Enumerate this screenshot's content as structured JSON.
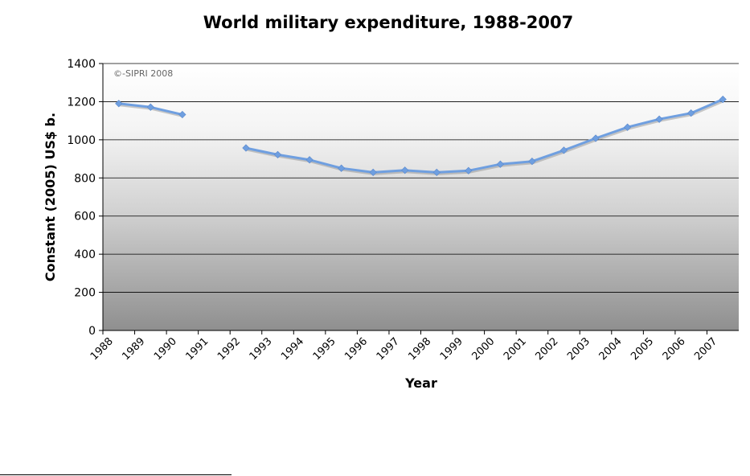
{
  "chart_data": {
    "type": "line",
    "title": "World military expenditure, 1988-2007",
    "xlabel": "Year",
    "ylabel": "Constant (2005) US$ b.",
    "watermark": "©-SIPRI 2008",
    "categories": [
      "1988",
      "1989",
      "1990",
      "1991",
      "1992",
      "1993",
      "1994",
      "1995",
      "1996",
      "1997",
      "1998",
      "1999",
      "2000",
      "2001",
      "2002",
      "2003",
      "2004",
      "2005",
      "2006",
      "2007"
    ],
    "yticks": [
      0,
      200,
      400,
      600,
      800,
      1000,
      1200,
      1400
    ],
    "ylim": [
      0,
      1400
    ],
    "grid": true,
    "series": [
      {
        "values": [
          1190,
          1171,
          1132,
          null,
          957,
          922,
          895,
          851,
          829,
          840,
          829,
          838,
          872,
          887,
          945,
          1008,
          1066,
          1108,
          1140,
          1212
        ],
        "color": "#6f9fe0"
      }
    ]
  }
}
